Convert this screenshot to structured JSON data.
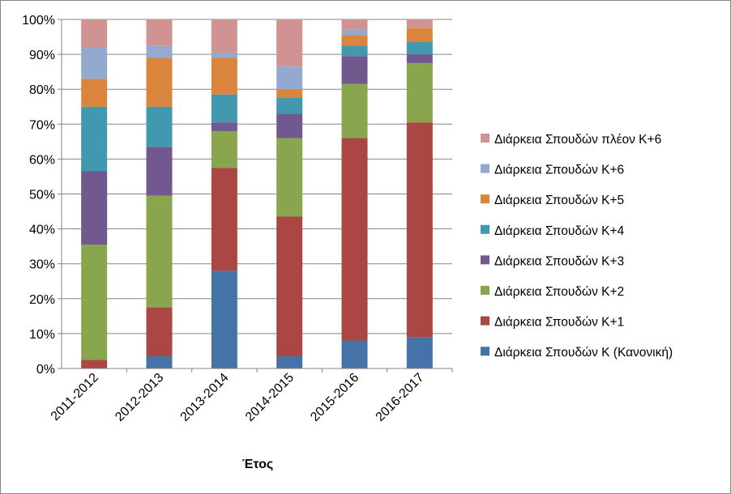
{
  "chart_data": {
    "type": "bar",
    "stacked": true,
    "percent": true,
    "xlabel": "Έτος",
    "ylabel": "",
    "ylim": [
      0,
      100
    ],
    "yticks": [
      "0%",
      "10%",
      "20%",
      "30%",
      "40%",
      "50%",
      "60%",
      "70%",
      "80%",
      "90%",
      "100%"
    ],
    "grid": true,
    "legend_position": "right",
    "categories": [
      "2011-2012",
      "2012-2013",
      "2013-2014",
      "2014-2015",
      "2015-2016",
      "2016-2017"
    ],
    "series": [
      {
        "name": "Διάρκεια Σπουδών Κ (Κανονική)",
        "color": "#4572a7",
        "values": [
          0,
          3.5,
          28,
          3.5,
          8,
          9
        ]
      },
      {
        "name": "Διάρκεια Σπουδών Κ+1",
        "color": "#aa4643",
        "values": [
          2.5,
          14,
          29.5,
          40,
          58,
          61.5
        ]
      },
      {
        "name": "Διάρκεια Σπουδών Κ+2",
        "color": "#89a54e",
        "values": [
          33,
          32,
          10.5,
          22.5,
          15.5,
          17
        ]
      },
      {
        "name": "Διάρκεια Σπουδών Κ+3",
        "color": "#71588f",
        "values": [
          21,
          14,
          2.5,
          7,
          8,
          2.5
        ]
      },
      {
        "name": "Διάρκεια Σπουδών Κ+4",
        "color": "#4198af",
        "values": [
          18.5,
          11.5,
          8,
          4.5,
          3,
          3.5
        ]
      },
      {
        "name": "Διάρκεια Σπουδών Κ+5",
        "color": "#db843d",
        "values": [
          8,
          14,
          10.5,
          2.5,
          3,
          4
        ]
      },
      {
        "name": "Διάρκεια Σπουδών Κ+6",
        "color": "#93a9cf",
        "values": [
          9,
          3.5,
          1.5,
          6.5,
          1.5,
          0
        ]
      },
      {
        "name": "Διάρκεια Σπουδών πλέον Κ+6",
        "color": "#d19392",
        "values": [
          8,
          7.5,
          9.5,
          13.5,
          3,
          2.5
        ]
      }
    ]
  }
}
